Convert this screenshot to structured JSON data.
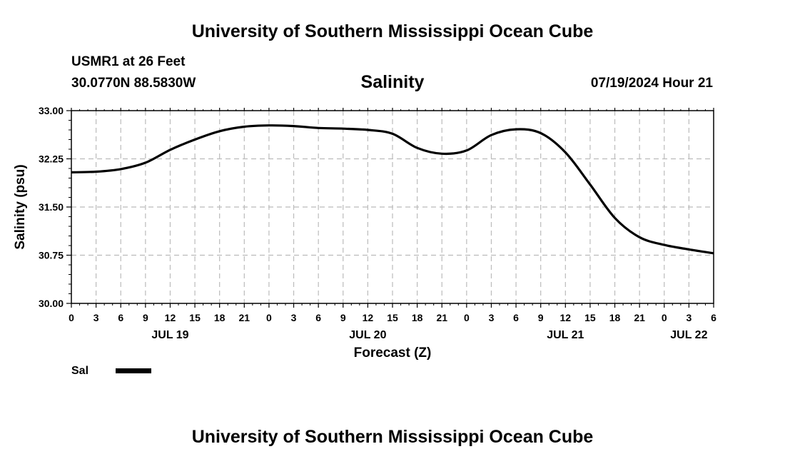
{
  "header": {
    "title": "University of Southern Mississippi Ocean Cube",
    "station": "USMR1 at 26 Feet",
    "coords": "30.0770N  88.5830W",
    "chart_title": "Salinity",
    "datetime": "07/19/2024 Hour 21"
  },
  "footer": {
    "title": "University of Southern Mississippi Ocean Cube"
  },
  "legend": {
    "label": "Sal"
  },
  "colors": {
    "line": "#000000",
    "grid": "#bbbbbb",
    "background": "#ffffff"
  },
  "chart_data": {
    "type": "line",
    "title": "Salinity",
    "xlabel": "Forecast (Z)",
    "ylabel": "Salinity (psu)",
    "x_unit": "hours since JUL 19 00Z",
    "xlim": [
      0,
      78
    ],
    "ylim": [
      30.0,
      33.0
    ],
    "y_ticks": [
      "30.00",
      "30.75",
      "31.50",
      "32.25",
      "33.00"
    ],
    "x_tick_labels": [
      "0",
      "3",
      "6",
      "9",
      "12",
      "15",
      "18",
      "21",
      "0",
      "3",
      "6",
      "9",
      "12",
      "15",
      "18",
      "21",
      "0",
      "3",
      "6",
      "9",
      "12",
      "15",
      "18",
      "21",
      "0",
      "3",
      "6"
    ],
    "date_labels": [
      {
        "label": "JUL 19",
        "hour": 12
      },
      {
        "label": "JUL 20",
        "hour": 36
      },
      {
        "label": "JUL 21",
        "hour": 60
      },
      {
        "label": "JUL 22",
        "hour": 75
      }
    ],
    "series": [
      {
        "name": "Sal",
        "x": [
          0,
          3,
          6,
          9,
          12,
          15,
          18,
          21,
          24,
          27,
          30,
          33,
          36,
          39,
          42,
          45,
          48,
          51,
          54,
          57,
          60,
          63,
          66,
          69,
          72,
          75,
          78
        ],
        "values": [
          32.04,
          32.05,
          32.09,
          32.19,
          32.39,
          32.55,
          32.68,
          32.75,
          32.77,
          32.76,
          32.73,
          32.72,
          32.7,
          32.64,
          32.42,
          32.33,
          32.38,
          32.62,
          32.71,
          32.65,
          32.35,
          31.85,
          31.33,
          31.03,
          30.91,
          30.84,
          30.78
        ]
      }
    ]
  }
}
